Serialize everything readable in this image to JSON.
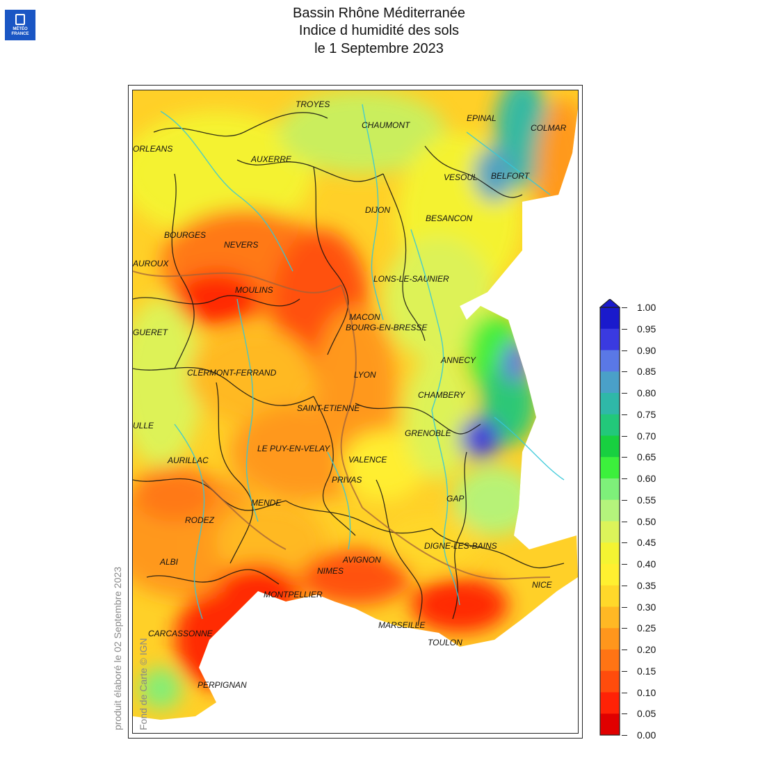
{
  "logo": {
    "text": "MÉTÉO FRANCE",
    "icon": "meteo-france-logo"
  },
  "title": {
    "line1": "Bassin Rhône Méditerranée",
    "line2": "Indice d humidité des sols",
    "line3": "le 1 Septembre 2023"
  },
  "credits": {
    "produced": "produit élaboré le 02 Septembre 2023",
    "basemap": "Fond de Carte © IGN"
  },
  "cities": [
    {
      "name": "TROYES"
    },
    {
      "name": "CHAUMONT"
    },
    {
      "name": "EPINAL"
    },
    {
      "name": "COLMAR"
    },
    {
      "name": "ORLEANS"
    },
    {
      "name": "AUXERRE"
    },
    {
      "name": "VESOUL"
    },
    {
      "name": "BELFORT"
    },
    {
      "name": "DIJON"
    },
    {
      "name": "BESANCON"
    },
    {
      "name": "BOURGES"
    },
    {
      "name": "NEVERS"
    },
    {
      "name": "AUROUX"
    },
    {
      "name": "LONS-LE-SAUNIER"
    },
    {
      "name": "MOULINS"
    },
    {
      "name": "MACON"
    },
    {
      "name": "GUERET"
    },
    {
      "name": "BOURG-EN-BRESSE"
    },
    {
      "name": "ANNECY"
    },
    {
      "name": "LYON"
    },
    {
      "name": "CLERMONT-FERRAND"
    },
    {
      "name": "CHAMBERY"
    },
    {
      "name": "SAINT-ETIENNE"
    },
    {
      "name": "ULLE"
    },
    {
      "name": "GRENOBLE"
    },
    {
      "name": "LE PUY-EN-VELAY"
    },
    {
      "name": "VALENCE"
    },
    {
      "name": "AURILLAC"
    },
    {
      "name": "PRIVAS"
    },
    {
      "name": "GAP"
    },
    {
      "name": "MENDE"
    },
    {
      "name": "RODEZ"
    },
    {
      "name": "DIGNE-LES-BAINS"
    },
    {
      "name": "AVIGNON"
    },
    {
      "name": "ALBI"
    },
    {
      "name": "NIMES"
    },
    {
      "name": "NICE"
    },
    {
      "name": "MONTPELLIER"
    },
    {
      "name": "MARSEILLE"
    },
    {
      "name": "CARCASSONNE"
    },
    {
      "name": "TOULON"
    },
    {
      "name": "PERPIGNAN"
    }
  ],
  "legend": {
    "labels": [
      "1.00",
      "0.95",
      "0.90",
      "0.85",
      "0.80",
      "0.75",
      "0.70",
      "0.65",
      "0.60",
      "0.55",
      "0.50",
      "0.45",
      "0.40",
      "0.35",
      "0.30",
      "0.25",
      "0.20",
      "0.15",
      "0.10",
      "0.05",
      "0.00"
    ],
    "colors": [
      "#1a1acc",
      "#3a3ae0",
      "#5a78e6",
      "#4aa0c8",
      "#2fb8a8",
      "#22c87a",
      "#18d040",
      "#3cf03c",
      "#7ef07a",
      "#b4f47c",
      "#dcf45a",
      "#f4f432",
      "#fff030",
      "#ffd82a",
      "#ffb824",
      "#ff961c",
      "#ff7414",
      "#ff4c0c",
      "#ff2206",
      "#e00000"
    ]
  }
}
